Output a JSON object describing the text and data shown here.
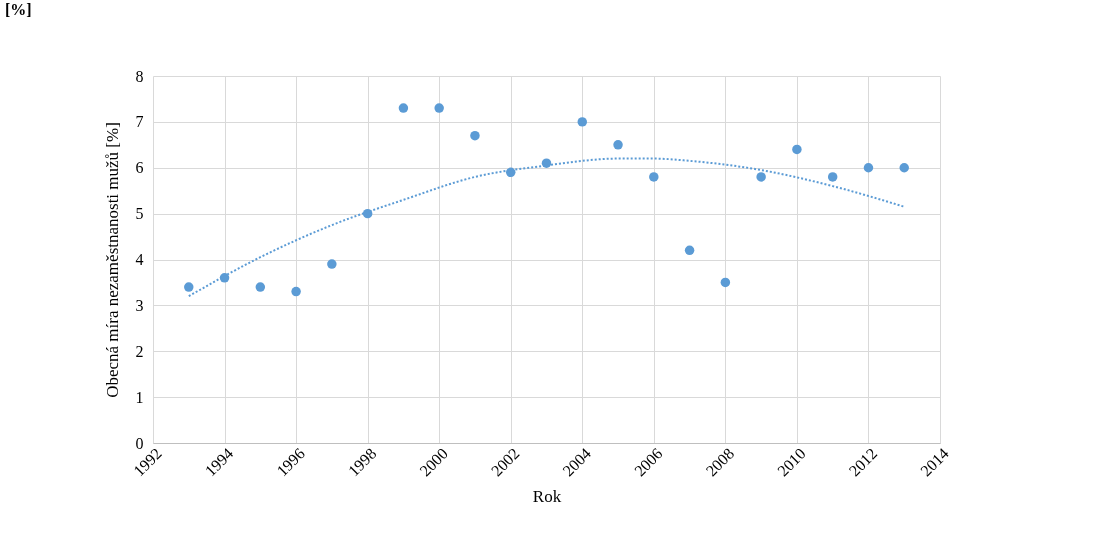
{
  "chart_data": {
    "type": "scatter",
    "xlabel": "Rok",
    "ylabel": "Obecná míra nezaměstnanosti mužů [%]",
    "annotations": [
      "[%]"
    ],
    "x": [
      1993,
      1994,
      1995,
      1996,
      1997,
      1998,
      1999,
      2000,
      2001,
      2002,
      2003,
      2004,
      2005,
      2006,
      2007,
      2008,
      2009,
      2010,
      2011,
      2012,
      2013
    ],
    "series": [
      {
        "type": "scatter",
        "color": "#5b9bd5",
        "marker": "circle",
        "values": [
          3.4,
          3.6,
          3.4,
          3.3,
          3.9,
          5.0,
          7.3,
          7.3,
          6.7,
          5.9,
          6.1,
          7.0,
          6.5,
          5.8,
          4.2,
          3.5,
          5.8,
          6.4,
          5.8,
          6.0,
          6.0
        ]
      },
      {
        "type": "line",
        "color": "#5b9bd5",
        "line_style": "dotted",
        "marker": "none",
        "x": [
          1993,
          1995,
          1997,
          1999,
          2001,
          2003,
          2005,
          2006,
          2007,
          2009,
          2011,
          2013
        ],
        "values": [
          3.2,
          4.05,
          4.75,
          5.3,
          5.8,
          6.05,
          6.2,
          6.2,
          6.15,
          5.95,
          5.6,
          5.15
        ]
      }
    ],
    "xlim": [
      1992,
      2014
    ],
    "xticks": [
      1992,
      1994,
      1996,
      1998,
      2000,
      2002,
      2004,
      2006,
      2008,
      2010,
      2012,
      2014
    ],
    "ylim": [
      0,
      8
    ],
    "yticks": [
      0,
      1,
      2,
      3,
      4,
      5,
      6,
      7,
      8
    ],
    "grid": true
  }
}
